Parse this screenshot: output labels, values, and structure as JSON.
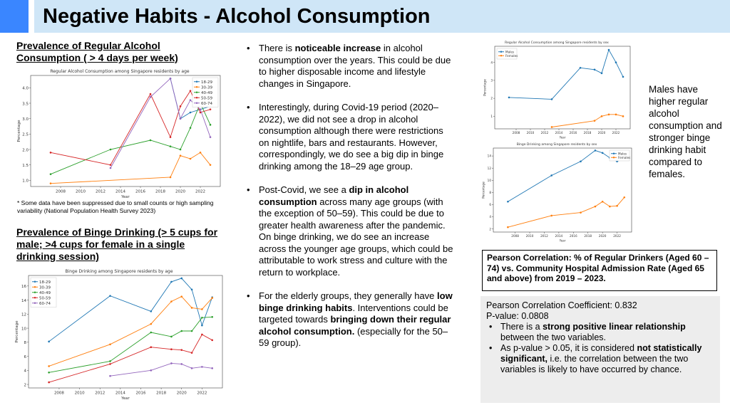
{
  "title": "Negative Habits - Alcohol Consumption",
  "sections": {
    "regular_heading": "Prevalence of Regular Alcohol Consumption ( > 4 days per week)",
    "binge_heading": "Prevalence of Binge Drinking (> 5 cups for male; >4 cups for female in a single drinking session)",
    "footnote": "* Some data have been suppressed due to small counts or high sampling variability (National Population Health Survey 2023)"
  },
  "bullets": [
    {
      "parts": [
        {
          "t": "There is "
        },
        {
          "t": "noticeable increase",
          "b": true
        },
        {
          "t": " in alcohol consumption over the years. This could be due to higher disposable income and lifestyle changes in Singapore."
        }
      ]
    },
    {
      "parts": [
        {
          "t": "Interestingly, during Covid-19 period (2020–2022), we did not see a drop in alcohol consumption although there were restrictions on nightlife, bars and restaurants. However, correspondingly, we do see a big dip in binge drinking among the 18–29 age group."
        }
      ]
    },
    {
      "parts": [
        {
          "t": "Post-Covid, we see a "
        },
        {
          "t": "dip in alcohol consumption",
          "b": true
        },
        {
          "t": " across many age groups (with the exception of 50–59). This could be due to greater health awareness after the pandemic. On binge drinking, we do see an increase across the younger age groups, which could be attributable to work stress and culture with the return to workplace."
        }
      ]
    },
    {
      "parts": [
        {
          "t": "For the elderly groups, they generally have "
        },
        {
          "t": "low binge drinking habits",
          "b": true
        },
        {
          "t": ". Interventions could be targeted towards "
        },
        {
          "t": "bringing down their regular alcohol consumption.",
          "b": true
        },
        {
          "t": "  (especially for the 50–59 group)."
        }
      ]
    }
  ],
  "males_note": "Males have higher regular alcohol consumption and stronger binge drinking habit compared to females.",
  "pearson": {
    "heading": "Pearson Correlation: % of Regular Drinkers (Aged 60 – 74) vs. Community Hospital Admission Rate (Aged 65 and above) from 2019 – 2023.",
    "coefficient": "Pearson Correlation Coefficient: 0.832",
    "pvalue": "P-value: 0.0808",
    "points": [
      {
        "parts": [
          {
            "t": "There is a "
          },
          {
            "t": "strong positive linear relationship",
            "b": true
          },
          {
            "t": " between the two variables."
          }
        ]
      },
      {
        "parts": [
          {
            "t": "As p-value > 0.05, it is considered "
          },
          {
            "t": "not statistically significant,",
            "b": true
          },
          {
            "t": " i.e. the correlation between the two variables is likely to have occurred by chance."
          }
        ]
      }
    ]
  },
  "chart_data": [
    {
      "id": "regular_age",
      "type": "line",
      "title": "Regular Alcohol Consumption among Singapore residents by age",
      "xlabel": "Year",
      "ylabel": "Percentage",
      "xlim": [
        2005,
        2024
      ],
      "ylim": [
        0.8,
        4.4
      ],
      "xticks": [
        2008,
        2010,
        2012,
        2014,
        2016,
        2018,
        2020,
        2022
      ],
      "yticks": [
        1.0,
        1.5,
        2.0,
        2.5,
        3.0,
        3.5,
        4.0
      ],
      "ytick_labels": [
        "1.0",
        "1.5",
        "2.0",
        "2.5",
        "3.0",
        "3.5",
        "4.0"
      ],
      "legend": "top-right",
      "series": [
        {
          "name": "18-29",
          "color": "#1f77b4",
          "x": [
            2019,
            2020,
            2021,
            2022,
            2023
          ],
          "y": [
            4.3,
            3.0,
            3.2,
            3.3,
            3.4
          ]
        },
        {
          "name": "30-39",
          "color": "#ff7f0e",
          "x": [
            2007,
            2019,
            2020,
            2021,
            2022,
            2023
          ],
          "y": [
            0.9,
            1.1,
            1.8,
            1.7,
            1.9,
            1.5
          ]
        },
        {
          "name": "40-49",
          "color": "#2ca02c",
          "x": [
            2007,
            2013,
            2017,
            2019,
            2020,
            2021,
            2022,
            2023
          ],
          "y": [
            1.2,
            2.0,
            2.3,
            2.1,
            2.0,
            2.7,
            3.5,
            2.8
          ]
        },
        {
          "name": "50-59",
          "color": "#d62728",
          "x": [
            2007,
            2013,
            2017,
            2019,
            2020,
            2021,
            2022,
            2023
          ],
          "y": [
            1.9,
            1.5,
            3.8,
            2.4,
            3.4,
            3.9,
            3.2,
            3.3
          ]
        },
        {
          "name": "60-74",
          "color": "#9467bd",
          "x": [
            2013,
            2017,
            2019,
            2020,
            2021,
            2022,
            2023
          ],
          "y": [
            1.4,
            3.7,
            4.3,
            3.0,
            3.6,
            3.3,
            2.4
          ]
        }
      ]
    },
    {
      "id": "binge_age",
      "type": "line",
      "title": "Binge Drinking among Singapore residents by age",
      "xlabel": "Year",
      "ylabel": "Percentage",
      "xlim": [
        2005,
        2024
      ],
      "ylim": [
        1.5,
        17.5
      ],
      "xticks": [
        2008,
        2010,
        2012,
        2014,
        2016,
        2018,
        2020,
        2022
      ],
      "yticks": [
        2,
        4,
        6,
        8,
        10,
        12,
        14,
        16
      ],
      "ytick_labels": [
        "2",
        "4",
        "6",
        "8",
        "10",
        "12",
        "14",
        "16"
      ],
      "legend": "top-left",
      "series": [
        {
          "name": "18-29",
          "color": "#1f77b4",
          "x": [
            2007,
            2013,
            2017,
            2019,
            2020,
            2021,
            2022,
            2023
          ],
          "y": [
            8.1,
            14.6,
            12.4,
            16.6,
            17.1,
            15.5,
            10.4,
            14.4
          ]
        },
        {
          "name": "30-39",
          "color": "#ff7f0e",
          "x": [
            2007,
            2013,
            2017,
            2019,
            2020,
            2021,
            2022,
            2023
          ],
          "y": [
            4.6,
            7.7,
            10.6,
            13.8,
            14.5,
            12.9,
            12.7,
            14.3
          ]
        },
        {
          "name": "40-49",
          "color": "#2ca02c",
          "x": [
            2007,
            2013,
            2017,
            2019,
            2020,
            2021,
            2022,
            2023
          ],
          "y": [
            3.7,
            5.3,
            9.4,
            8.8,
            9.6,
            9.6,
            11.5,
            11.6
          ]
        },
        {
          "name": "50-59",
          "color": "#d62728",
          "x": [
            2007,
            2013,
            2017,
            2019,
            2020,
            2021,
            2022,
            2023
          ],
          "y": [
            2.3,
            4.9,
            7.3,
            7.0,
            6.9,
            6.5,
            9.1,
            8.3
          ]
        },
        {
          "name": "60-74",
          "color": "#9467bd",
          "x": [
            2013,
            2017,
            2019,
            2020,
            2021,
            2022,
            2023
          ],
          "y": [
            3.2,
            4.0,
            5.0,
            4.9,
            4.3,
            4.5,
            4.3
          ]
        }
      ]
    },
    {
      "id": "regular_sex",
      "type": "line",
      "title": "Regular Alcohol Consumption among Singapore residents by sex",
      "xlabel": "Year",
      "ylabel": "Percentage",
      "xlim": [
        2005,
        2024
      ],
      "ylim": [
        0.3,
        4.9
      ],
      "xticks": [
        2008,
        2010,
        2012,
        2014,
        2016,
        2018,
        2020,
        2022
      ],
      "yticks": [
        1,
        2,
        3,
        4
      ],
      "ytick_labels": [
        "1",
        "2",
        "3",
        "4"
      ],
      "legend": "top-left",
      "series": [
        {
          "name": "Males",
          "color": "#1f77b4",
          "x": [
            2007,
            2013,
            2017,
            2019,
            2020,
            2021,
            2022,
            2023
          ],
          "y": [
            2.05,
            1.95,
            3.7,
            3.6,
            3.4,
            4.7,
            4.0,
            3.2
          ]
        },
        {
          "name": "Females",
          "color": "#ff7f0e",
          "x": [
            2013,
            2019,
            2020,
            2021,
            2022,
            2023
          ],
          "y": [
            0.4,
            0.75,
            1.0,
            1.1,
            1.1,
            1.0
          ]
        }
      ]
    },
    {
      "id": "binge_sex",
      "type": "line",
      "title": "Binge Drinking among Singapore residents by sex",
      "xlabel": "Year",
      "ylabel": "Percentage",
      "xlim": [
        2005,
        2024
      ],
      "ylim": [
        1.5,
        15.3
      ],
      "xticks": [
        2008,
        2010,
        2012,
        2014,
        2016,
        2018,
        2020,
        2022
      ],
      "yticks": [
        2,
        4,
        6,
        8,
        10,
        12,
        14
      ],
      "ytick_labels": [
        "2",
        "4",
        "6",
        "8",
        "10",
        "12",
        "14"
      ],
      "legend": "top-right",
      "series": [
        {
          "name": "Males",
          "color": "#1f77b4",
          "x": [
            2007,
            2013,
            2017,
            2019,
            2020,
            2021,
            2022,
            2023
          ],
          "y": [
            6.5,
            10.8,
            13.1,
            14.9,
            14.5,
            13.7,
            13.1,
            13.6
          ]
        },
        {
          "name": "Females",
          "color": "#ff7f0e",
          "x": [
            2007,
            2013,
            2017,
            2019,
            2020,
            2021,
            2022,
            2023
          ],
          "y": [
            2.3,
            4.2,
            4.7,
            5.7,
            6.5,
            5.7,
            5.8,
            7.2
          ]
        }
      ]
    }
  ]
}
